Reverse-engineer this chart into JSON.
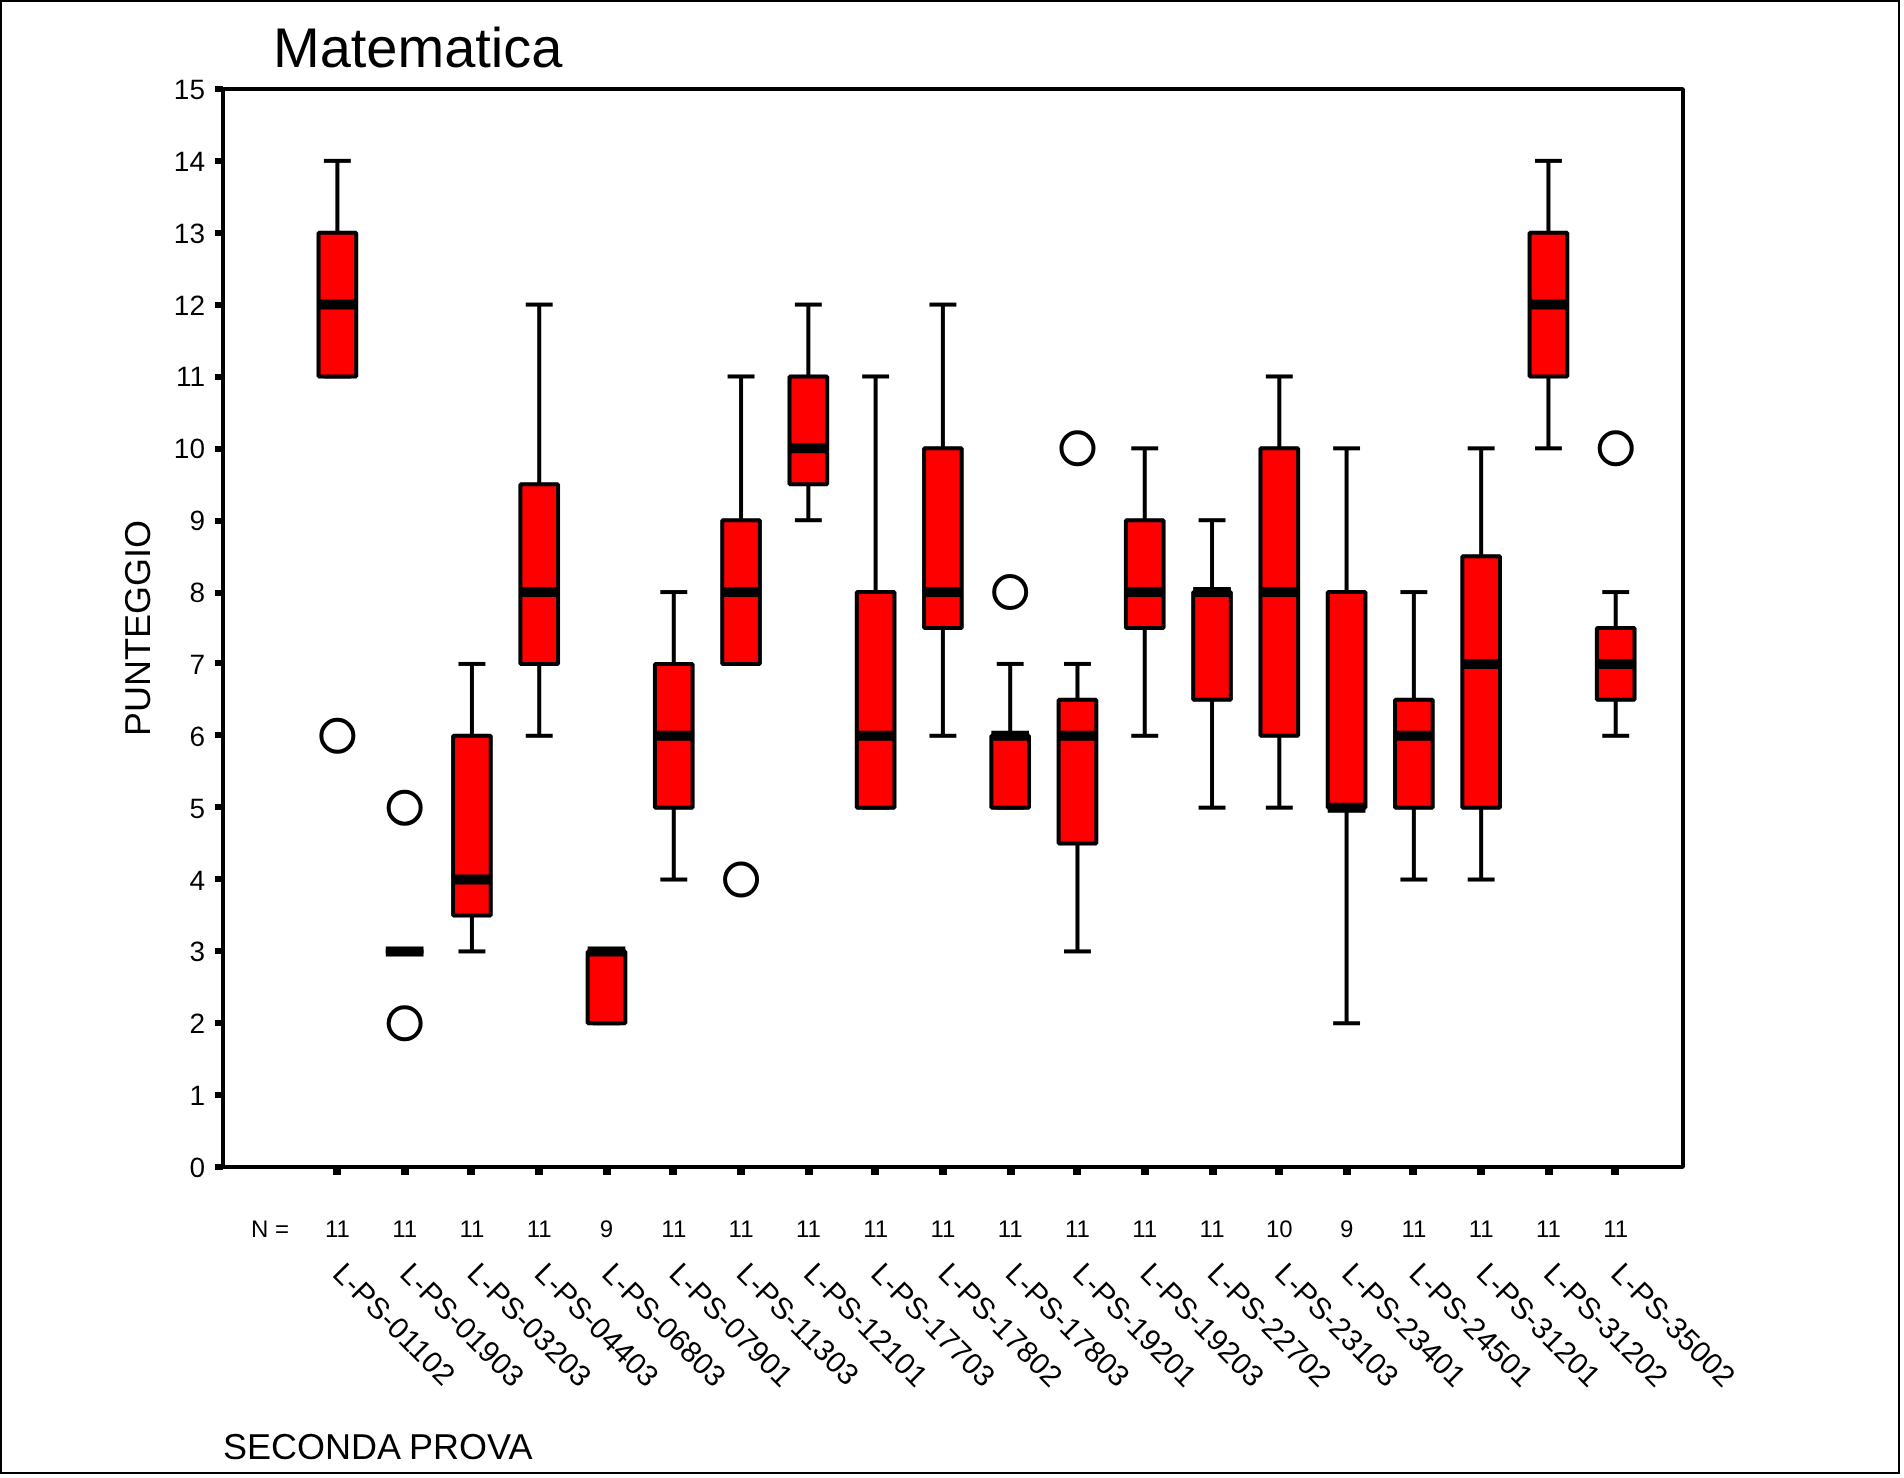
{
  "chart_data": {
    "type": "box",
    "title": "Matematica",
    "xlabel": "SECONDA PROVA",
    "ylabel": "PUNTEGGIO",
    "categories": [
      "L-PS-01102",
      "L-PS-01903",
      "L-PS-03203",
      "L-PS-04403",
      "L-PS-06803",
      "L-PS-07901",
      "L-PS-11303",
      "L-PS-12101",
      "L-PS-17703",
      "L-PS-17802",
      "L-PS-17803",
      "L-PS-19201",
      "L-PS-19203",
      "L-PS-22702",
      "L-PS-23103",
      "L-PS-23401",
      "L-PS-24501",
      "L-PS-31201",
      "L-PS-31202",
      "L-PS-35002"
    ],
    "colors": [
      "#ff0000",
      "#000000",
      "#ff0000",
      "#ff0000",
      "#ff0000",
      "#ff0000",
      "#ff0000",
      "#ff0000",
      "#ff0000",
      "#ff0000",
      "#ff0000",
      "#ff0000",
      "#ff0000",
      "#ff0000",
      "#ff0000",
      "#ff0000",
      "#ff0000",
      "#ff0000",
      "#ff0000",
      "#ff0000"
    ],
    "boxes": [
      {
        "low": 11,
        "q1": 11,
        "median": 12,
        "q3": 13,
        "high": 14,
        "outliers": [
          6
        ]
      },
      {
        "low": 3,
        "q1": 3,
        "median": 3,
        "q3": 3,
        "high": 3,
        "outliers": [
          5,
          2
        ]
      },
      {
        "low": 3,
        "q1": 3.5,
        "median": 4,
        "q3": 6,
        "high": 7
      },
      {
        "low": 6,
        "q1": 7,
        "median": 8,
        "q3": 9.5,
        "high": 12
      },
      {
        "low": 2,
        "q1": 2,
        "median": 3,
        "q3": 3,
        "high": 3
      },
      {
        "low": 4,
        "q1": 5,
        "median": 6,
        "q3": 7,
        "high": 8
      },
      {
        "low": 7,
        "q1": 7,
        "median": 8,
        "q3": 9,
        "high": 11,
        "outliers": [
          4
        ]
      },
      {
        "low": 9,
        "q1": 9.5,
        "median": 10,
        "q3": 11,
        "high": 12
      },
      {
        "low": 5,
        "q1": 5,
        "median": 6,
        "q3": 8,
        "high": 11
      },
      {
        "low": 6,
        "q1": 7.5,
        "median": 8,
        "q3": 10,
        "high": 12
      },
      {
        "low": 5,
        "q1": 5,
        "median": 6,
        "q3": 6,
        "high": 7,
        "outliers": [
          8
        ]
      },
      {
        "low": 3,
        "q1": 4.5,
        "median": 6,
        "q3": 6.5,
        "high": 7,
        "outliers": [
          10
        ]
      },
      {
        "low": 6,
        "q1": 7.5,
        "median": 8,
        "q3": 9,
        "high": 10
      },
      {
        "low": 5,
        "q1": 6.5,
        "median": 8,
        "q3": 8,
        "high": 9
      },
      {
        "low": 5,
        "q1": 6,
        "median": 8,
        "q3": 10,
        "high": 11
      },
      {
        "low": 2,
        "q1": 5,
        "median": 5,
        "q3": 8,
        "high": 10
      },
      {
        "low": 4,
        "q1": 5,
        "median": 6,
        "q3": 6.5,
        "high": 8
      },
      {
        "low": 4,
        "q1": 5,
        "median": 7,
        "q3": 8.5,
        "high": 10
      },
      {
        "low": 10,
        "q1": 11,
        "median": 12,
        "q3": 13,
        "high": 14
      },
      {
        "low": 6,
        "q1": 6.5,
        "median": 7,
        "q3": 7.5,
        "high": 8,
        "outliers": [
          10
        ]
      }
    ],
    "ylim": [
      0,
      15
    ],
    "yticks": [
      0,
      1,
      2,
      3,
      4,
      5,
      6,
      7,
      8,
      9,
      10,
      11,
      12,
      13,
      14,
      15
    ],
    "grid": false,
    "marker": "circle",
    "annotations": [
      "N =",
      "11",
      "11",
      "11",
      "11",
      "9",
      "11",
      "11",
      "11",
      "11",
      "11",
      "11",
      "11",
      "11",
      "11",
      "10",
      "9",
      "11",
      "11",
      "11",
      "11"
    ]
  }
}
